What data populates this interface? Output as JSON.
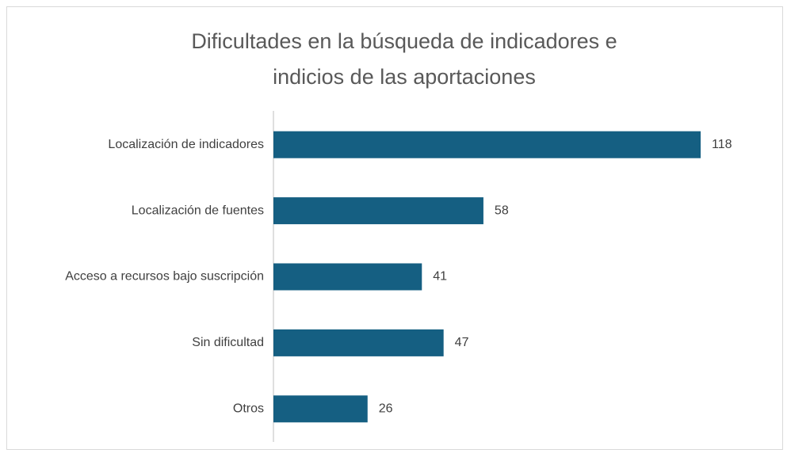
{
  "chart_data": {
    "type": "bar",
    "orientation": "horizontal",
    "title": "Dificultades en la búsqueda de indicadores e indicios de las aportaciones",
    "categories": [
      "Localización de indicadores",
      "Localización de fuentes",
      "Acceso a recursos bajo suscripción",
      "Sin dificultad",
      "Otros"
    ],
    "values": [
      118,
      58,
      41,
      47,
      26
    ],
    "color": "#155f82"
  }
}
